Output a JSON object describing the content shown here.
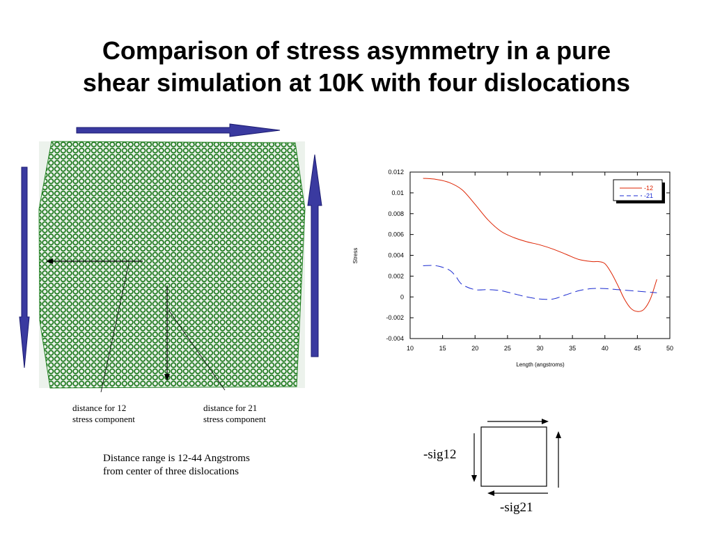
{
  "title": {
    "line1": "Comparison of stress asymmetry in a pure",
    "line2": "shear simulation at 10K with four dislocations"
  },
  "captions": {
    "distance_12_line1": "distance for 12",
    "distance_12_line2": "stress component",
    "distance_21_line1": "distance for 21",
    "distance_21_line2": "stress component",
    "range_line1": "Distance range is 12-44 Angstroms",
    "range_line2": "from center of three dislocations"
  },
  "shear_diagram": {
    "sig12_label": "-sig12",
    "sig21_label": "-sig21"
  },
  "colors": {
    "series_12": "#dd2200",
    "series_21": "#1a2ad0",
    "arrow_fill": "#3a3aa0",
    "atoms": "#1c7a1c"
  },
  "chart_data": {
    "type": "line",
    "xlabel": "Length  (angstroms)",
    "ylabel": "Stress",
    "xlim": [
      10,
      50
    ],
    "ylim": [
      -0.004,
      0.012
    ],
    "x_ticks": [
      "10",
      "15",
      "20",
      "25",
      "30",
      "35",
      "40",
      "45",
      "50"
    ],
    "y_ticks": [
      "-0.004",
      "-0.002",
      "0",
      "0.002",
      "0.004",
      "0.006",
      "0.008",
      "0.01",
      "0.012"
    ],
    "legend_position": "top-right",
    "series": [
      {
        "name": "-12",
        "style": "solid",
        "x": [
          12,
          14,
          16,
          18,
          20,
          22,
          24,
          26,
          28,
          30,
          32,
          34,
          36,
          38,
          39,
          40,
          41,
          42,
          43,
          44,
          45,
          46,
          47,
          48
        ],
        "y": [
          0.0114,
          0.0113,
          0.011,
          0.0103,
          0.0089,
          0.0074,
          0.0063,
          0.0057,
          0.0053,
          0.005,
          0.0046,
          0.0041,
          0.0036,
          0.0034,
          0.0034,
          0.0032,
          0.0023,
          0.0011,
          -0.0002,
          -0.0011,
          -0.0014,
          -0.0012,
          -0.0002,
          0.0017
        ]
      },
      {
        "name": "-21",
        "style": "dashed",
        "x": [
          12,
          14,
          16,
          17,
          18,
          20,
          22,
          24,
          26,
          28,
          30,
          32,
          34,
          36,
          38,
          40,
          42,
          44,
          46,
          48
        ],
        "y": [
          0.003,
          0.003,
          0.0026,
          0.002,
          0.0012,
          0.0007,
          0.0007,
          0.0006,
          0.0003,
          0.0,
          -0.0002,
          -0.0002,
          0.0002,
          0.0006,
          0.0008,
          0.0008,
          0.0007,
          0.0006,
          0.0005,
          0.0004
        ]
      }
    ]
  }
}
